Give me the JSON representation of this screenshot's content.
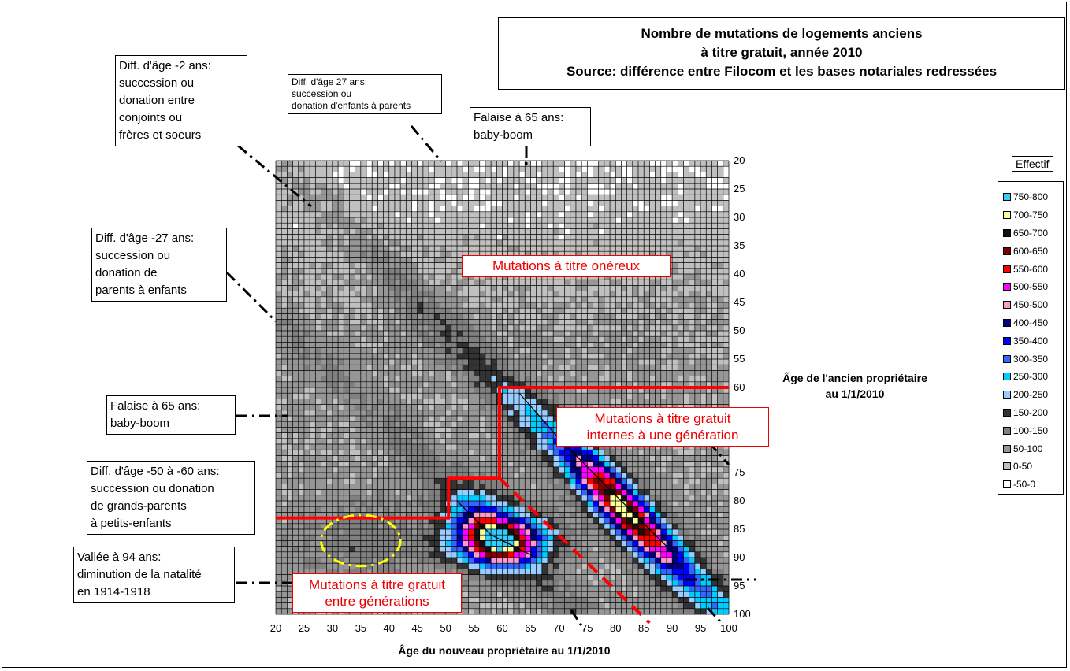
{
  "chart_data": {
    "type": "heatmap",
    "title_lines": [
      "Nombre de mutations de logements anciens",
      "à titre gratuit, année 2010",
      "Source: différence entre Filocom et les bases notariales redressées"
    ],
    "xlabel": "Âge du nouveau propriétaire au 1/1/2010",
    "ylabel_lines": [
      "Âge de l'ancien propriétaire",
      "au 1/1/2010"
    ],
    "xlim": [
      20,
      100
    ],
    "ylim": [
      20,
      100
    ],
    "x_ticks": [
      "20",
      "25",
      "30",
      "35",
      "40",
      "45",
      "50",
      "55",
      "60",
      "65",
      "70",
      "75",
      "80",
      "85",
      "90",
      "95",
      "100"
    ],
    "y_ticks": [
      "20",
      "25",
      "30",
      "35",
      "40",
      "45",
      "50",
      "55",
      "60",
      "65",
      "70",
      "75",
      "80",
      "85",
      "90",
      "95",
      "100"
    ],
    "grid": true,
    "legend_position": "right",
    "legend_title": "Effectif",
    "legend": [
      {
        "label": "750-800",
        "color": "#33ccff"
      },
      {
        "label": "700-750",
        "color": "#ffff99"
      },
      {
        "label": "650-700",
        "color": "#111111"
      },
      {
        "label": "600-650",
        "color": "#800000"
      },
      {
        "label": "550-600",
        "color": "#ff0000"
      },
      {
        "label": "500-550",
        "color": "#ff00ff"
      },
      {
        "label": "450-500",
        "color": "#ff99cc"
      },
      {
        "label": "400-450",
        "color": "#000080"
      },
      {
        "label": "350-400",
        "color": "#0000ff"
      },
      {
        "label": "300-350",
        "color": "#3366ff"
      },
      {
        "label": "250-300",
        "color": "#00ccff"
      },
      {
        "label": "200-250",
        "color": "#99ccff"
      },
      {
        "label": "150-200",
        "color": "#333333"
      },
      {
        "label": "100-150",
        "color": "#808080"
      },
      {
        "label": "50-100",
        "color": "#969696"
      },
      {
        "label": "0-50",
        "color": "#c0c0c0"
      },
      {
        "label": "-50-0",
        "color": "#ffffff"
      }
    ],
    "ridges": [
      {
        "x": [
          63,
          70,
          75,
          80,
          85,
          90
        ],
        "y": [
          61,
          69,
          74,
          79,
          84,
          89
        ],
        "peak_range": "450-550"
      },
      {
        "x": [
          52,
          55,
          58,
          62,
          66
        ],
        "y": [
          80,
          83,
          86,
          88,
          90
        ],
        "peak_range": "650-750"
      }
    ]
  },
  "callouts": {
    "c1": [
      "Diff. d'âge -2 ans:",
      "succession ou",
      "donation entre",
      "conjoints ou",
      " frères et soeurs"
    ],
    "c2": [
      "Diff. d'âge 27 ans:",
      "succession ou",
      "donation d'enfants à parents"
    ],
    "c3": [
      "Falaise à 65 ans:",
      "baby-boom"
    ],
    "c4": [
      "Diff. d'âge -27 ans:",
      "succession ou",
      "donation de",
      "parents à enfants"
    ],
    "c5": [
      "Falaise à 65 ans:",
      "baby-boom"
    ],
    "c6": [
      "Diff. d'âge -50 à -60 ans:",
      "succession ou donation",
      "de grands-parents",
      "à petits-enfants"
    ],
    "c7": [
      "Vallée à 94 ans:",
      "diminution de la natalité",
      "en 1914-1918"
    ]
  },
  "red_labels": {
    "onereux": "Mutations à titre onéreux",
    "interne": [
      "Mutations à titre gratuit",
      "internes à une génération"
    ],
    "entre": [
      "Mutations à titre gratuit",
      "entre générations"
    ]
  },
  "colors": {
    "frontier": "#ff0000",
    "circle": "#ffff00",
    "grid": "#000000"
  }
}
